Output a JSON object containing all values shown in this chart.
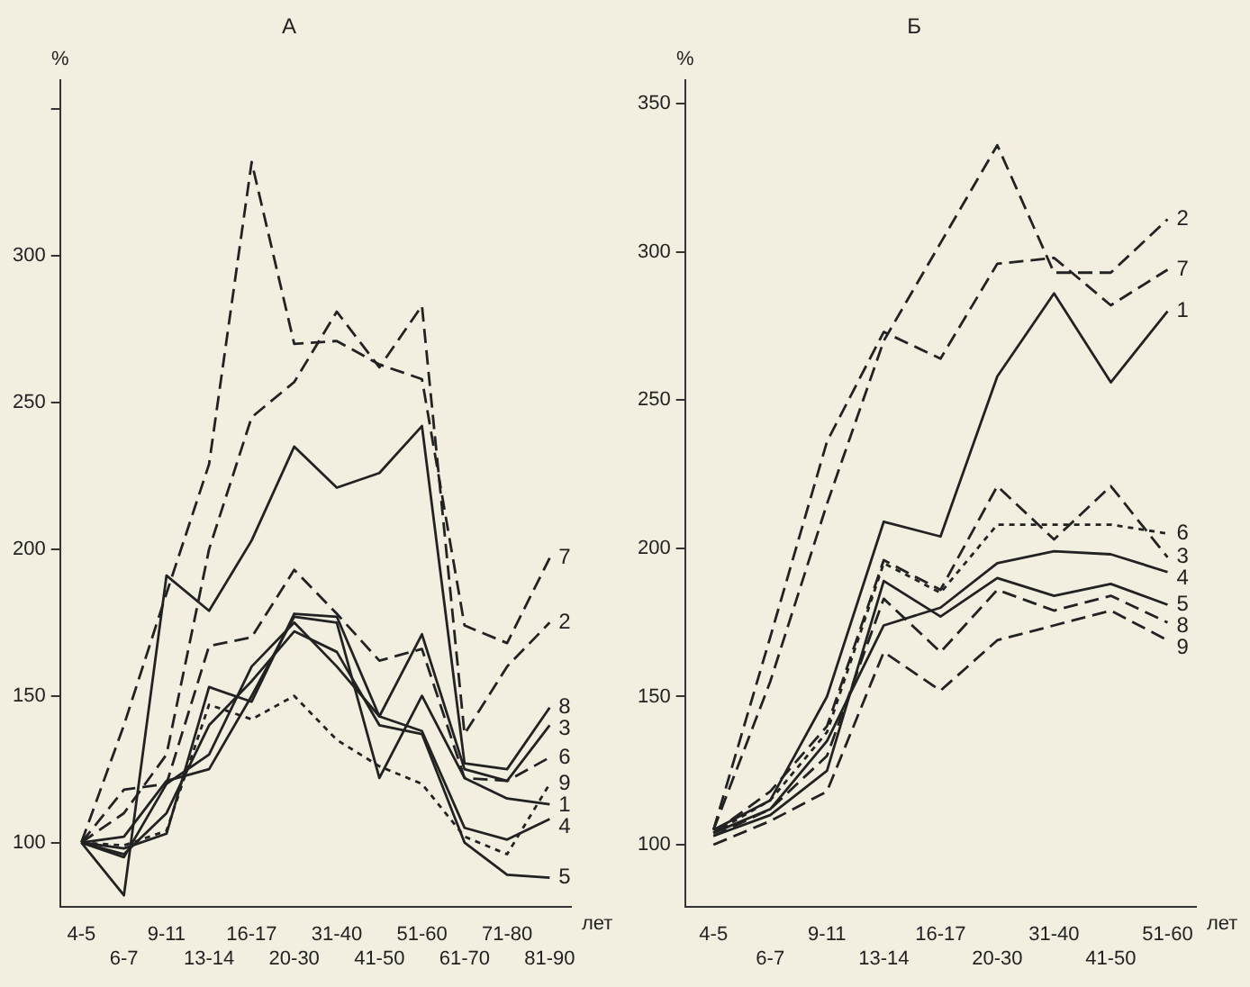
{
  "chart_data": [
    {
      "type": "line",
      "title": "А",
      "ylabel": "%",
      "xlabel": "лет",
      "categories": [
        "4-5",
        "6-7",
        "9-11",
        "13-14",
        "16-17",
        "20-30",
        "31-40",
        "41-50",
        "51-60",
        "61-70",
        "71-80",
        "81-90"
      ],
      "ylim": [
        78,
        360
      ],
      "yticks": [
        100,
        150,
        200,
        250,
        300,
        {
          "value": 350,
          "label": null
        }
      ],
      "grid": false,
      "legend": false,
      "marker": "none",
      "series": [
        {
          "name": "1",
          "color": "#222222",
          "line_style": "solid",
          "values": [
            100,
            102,
            121,
            125,
            150,
            177,
            175,
            122,
            150,
            122,
            115,
            113
          ]
        },
        {
          "name": "2",
          "color": "#222222",
          "line_style": "dashed",
          "values": [
            100,
            110,
            130,
            200,
            245,
            257,
            281,
            262,
            283,
            137,
            160,
            175
          ]
        },
        {
          "name": "3",
          "color": "#222222",
          "line_style": "solid",
          "values": [
            100,
            98,
            103,
            153,
            148,
            178,
            177,
            143,
            171,
            125,
            121,
            140
          ]
        },
        {
          "name": "4",
          "color": "#222222",
          "line_style": "solid",
          "values": [
            100,
            95,
            120,
            130,
            160,
            175,
            160,
            143,
            138,
            105,
            101,
            108
          ]
        },
        {
          "name": "5",
          "color": "#222222",
          "line_style": "solid",
          "values": [
            100,
            96,
            110,
            140,
            155,
            172,
            165,
            140,
            137,
            100,
            89,
            88
          ]
        },
        {
          "name": "6",
          "color": "#222222",
          "line_style": "dashed",
          "values": [
            100,
            118,
            120,
            167,
            170,
            193,
            178,
            162,
            166,
            122,
            121,
            129
          ]
        },
        {
          "name": "7",
          "color": "#222222",
          "line_style": "dashed",
          "values": [
            100,
            140,
            185,
            229,
            332,
            270,
            271,
            263,
            258,
            174,
            168,
            197
          ]
        },
        {
          "name": "8",
          "color": "#222222",
          "line_style": "solid",
          "values": [
            100,
            82,
            191,
            179,
            203,
            235,
            221,
            226,
            242,
            127,
            125,
            146
          ]
        },
        {
          "name": "9",
          "color": "#222222",
          "line_style": "dotted",
          "values": [
            100,
            99,
            104,
            147,
            142,
            150,
            135,
            126,
            120,
            102,
            96,
            120
          ]
        }
      ]
    },
    {
      "type": "line",
      "title": "Б",
      "ylabel": "%",
      "xlabel": "лет",
      "categories": [
        "4-5",
        "6-7",
        "9-11",
        "13-14",
        "16-17",
        "20-30",
        "31-40",
        "41-50",
        "51-60"
      ],
      "ylim": [
        79,
        358
      ],
      "yticks": [
        100,
        150,
        200,
        250,
        300,
        350
      ],
      "grid": false,
      "legend": false,
      "marker": "none",
      "series": [
        {
          "name": "1",
          "color": "#222222",
          "line_style": "solid",
          "values": [
            105,
            115,
            150,
            209,
            204,
            258,
            286,
            256,
            280
          ]
        },
        {
          "name": "2",
          "color": "#222222",
          "line_style": "dashed",
          "values": [
            105,
            155,
            215,
            270,
            303,
            336,
            293,
            293,
            311
          ]
        },
        {
          "name": "3",
          "color": "#222222",
          "line_style": "dashed",
          "values": [
            104,
            118,
            140,
            196,
            186,
            221,
            203,
            221,
            197
          ]
        },
        {
          "name": "4",
          "color": "#222222",
          "line_style": "solid",
          "values": [
            104,
            112,
            135,
            174,
            180,
            195,
            199,
            198,
            192
          ]
        },
        {
          "name": "5",
          "color": "#222222",
          "line_style": "solid",
          "values": [
            103,
            110,
            125,
            189,
            177,
            190,
            184,
            188,
            181
          ]
        },
        {
          "name": "6",
          "color": "#222222",
          "line_style": "dotted",
          "values": [
            104,
            115,
            138,
            195,
            185,
            208,
            208,
            208,
            205
          ]
        },
        {
          "name": "7",
          "color": "#222222",
          "line_style": "dashed",
          "values": [
            105,
            170,
            236,
            273,
            264,
            296,
            298,
            282,
            294
          ]
        },
        {
          "name": "8",
          "color": "#222222",
          "line_style": "dashed",
          "values": [
            103,
            112,
            130,
            183,
            165,
            186,
            179,
            184,
            175
          ]
        },
        {
          "name": "9",
          "color": "#222222",
          "line_style": "dashed",
          "values": [
            100,
            108,
            118,
            165,
            152,
            169,
            174,
            179,
            169
          ]
        }
      ]
    }
  ]
}
